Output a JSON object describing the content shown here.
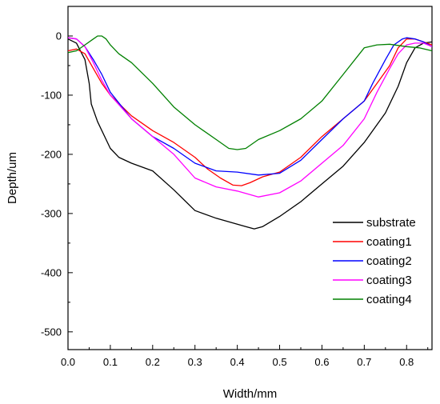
{
  "chart_data": {
    "type": "line",
    "xlabel": "Width/mm",
    "ylabel": "Depth/um",
    "xlim": [
      0,
      0.86
    ],
    "ylim": [
      -530,
      50
    ],
    "x_ticks": [
      0.0,
      0.1,
      0.2,
      0.3,
      0.4,
      0.5,
      0.6,
      0.7,
      0.8
    ],
    "x_tick_labels": [
      "0.0",
      "0.1",
      "0.2",
      "0.3",
      "0.4",
      "0.5",
      "0.6",
      "0.7",
      "0.8"
    ],
    "y_ticks": [
      0,
      -100,
      -200,
      -300,
      -400,
      -500
    ],
    "y_tick_labels": [
      "0",
      "-100",
      "-200",
      "-300",
      "-400",
      "-500"
    ],
    "legend_position": "lower-right",
    "grid": false,
    "series": [
      {
        "name": "substrate",
        "color": "#000000",
        "x": [
          0.0,
          0.02,
          0.04,
          0.05,
          0.055,
          0.07,
          0.09,
          0.1,
          0.12,
          0.15,
          0.2,
          0.25,
          0.3,
          0.35,
          0.4,
          0.42,
          0.44,
          0.46,
          0.5,
          0.55,
          0.6,
          0.65,
          0.7,
          0.75,
          0.78,
          0.8,
          0.82,
          0.84,
          0.86
        ],
        "y": [
          -5,
          -12,
          -40,
          -80,
          -115,
          -145,
          -175,
          -190,
          -205,
          -215,
          -228,
          -260,
          -295,
          -308,
          -318,
          -322,
          -326,
          -322,
          -305,
          -280,
          -250,
          -220,
          -180,
          -130,
          -85,
          -45,
          -20,
          -12,
          -10
        ]
      },
      {
        "name": "coating1",
        "color": "#ff0000",
        "x": [
          0.0,
          0.02,
          0.04,
          0.06,
          0.08,
          0.1,
          0.15,
          0.2,
          0.25,
          0.3,
          0.33,
          0.36,
          0.39,
          0.41,
          0.43,
          0.46,
          0.5,
          0.55,
          0.6,
          0.65,
          0.7,
          0.73,
          0.76,
          0.78,
          0.8,
          0.82,
          0.84,
          0.86
        ],
        "y": [
          -25,
          -22,
          -30,
          -55,
          -80,
          -100,
          -135,
          -160,
          -180,
          -205,
          -225,
          -240,
          -252,
          -253,
          -248,
          -238,
          -230,
          -205,
          -170,
          -140,
          -110,
          -80,
          -50,
          -20,
          -5,
          -5,
          -10,
          -15
        ]
      },
      {
        "name": "coating2",
        "color": "#0000ff",
        "x": [
          0.0,
          0.02,
          0.04,
          0.06,
          0.08,
          0.1,
          0.15,
          0.2,
          0.25,
          0.3,
          0.35,
          0.4,
          0.45,
          0.5,
          0.55,
          0.6,
          0.65,
          0.7,
          0.72,
          0.75,
          0.77,
          0.79,
          0.8,
          0.82,
          0.84,
          0.86
        ],
        "y": [
          -3,
          -5,
          -18,
          -40,
          -65,
          -95,
          -140,
          -170,
          -190,
          -215,
          -228,
          -230,
          -235,
          -232,
          -210,
          -175,
          -140,
          -110,
          -80,
          -40,
          -15,
          -5,
          -3,
          -5,
          -10,
          -18
        ]
      },
      {
        "name": "coating3",
        "color": "#ff00ff",
        "x": [
          0.0,
          0.02,
          0.04,
          0.06,
          0.08,
          0.1,
          0.15,
          0.2,
          0.25,
          0.3,
          0.35,
          0.4,
          0.45,
          0.5,
          0.55,
          0.6,
          0.65,
          0.7,
          0.73,
          0.76,
          0.78,
          0.8,
          0.82,
          0.84,
          0.86
        ],
        "y": [
          -3,
          -5,
          -18,
          -45,
          -75,
          -100,
          -140,
          -170,
          -200,
          -240,
          -255,
          -262,
          -272,
          -265,
          -245,
          -215,
          -185,
          -140,
          -95,
          -55,
          -30,
          -15,
          -12,
          -12,
          -18
        ]
      },
      {
        "name": "coating4",
        "color": "#008000",
        "x": [
          0.0,
          0.02,
          0.04,
          0.06,
          0.07,
          0.08,
          0.09,
          0.1,
          0.12,
          0.15,
          0.2,
          0.25,
          0.3,
          0.35,
          0.38,
          0.4,
          0.42,
          0.45,
          0.5,
          0.55,
          0.6,
          0.65,
          0.7,
          0.73,
          0.76,
          0.8,
          0.83,
          0.86
        ],
        "y": [
          -28,
          -25,
          -15,
          -5,
          0,
          0,
          -5,
          -15,
          -30,
          -45,
          -80,
          -120,
          -150,
          -175,
          -190,
          -192,
          -190,
          -175,
          -160,
          -140,
          -110,
          -65,
          -20,
          -15,
          -14,
          -18,
          -20,
          -25
        ]
      }
    ]
  }
}
